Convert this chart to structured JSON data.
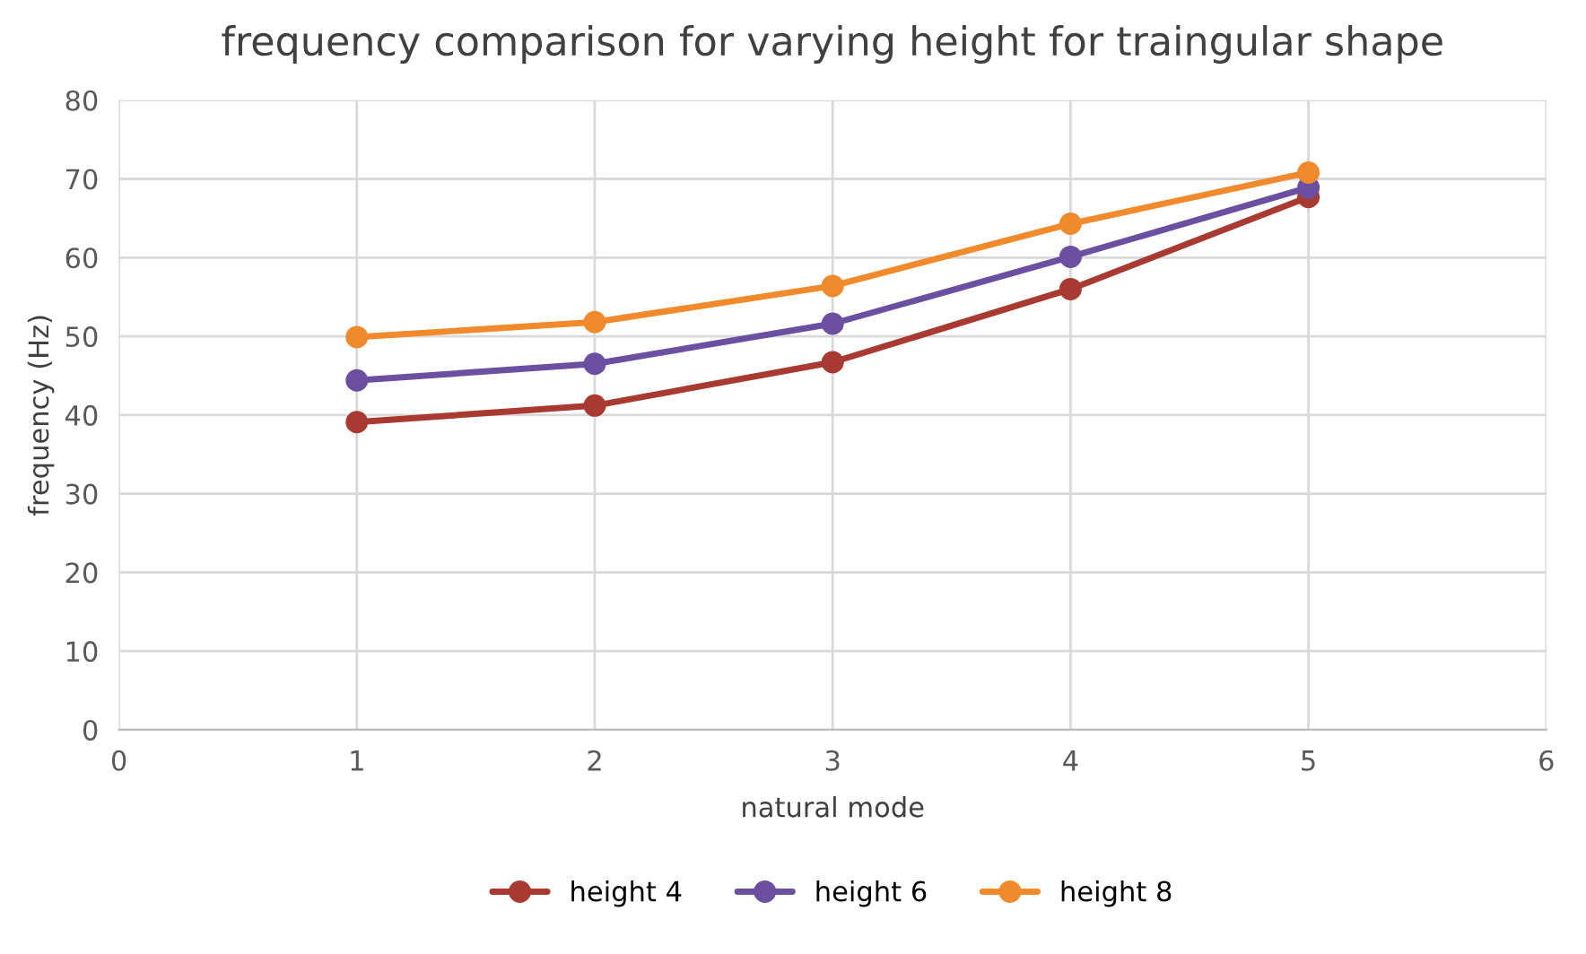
{
  "chart_data": {
    "type": "line",
    "title": "frequency comparison for varying height for traingular shape",
    "xlabel": "natural mode",
    "ylabel": "frequency (Hz)",
    "x": [
      1,
      2,
      3,
      4,
      5
    ],
    "series": [
      {
        "name": "height 4",
        "color": "#a83a32",
        "values": [
          39.1,
          41.2,
          46.7,
          56,
          67.7
        ]
      },
      {
        "name": "height 6",
        "color": "#6b4fa0",
        "values": [
          44.4,
          46.5,
          51.6,
          60.1,
          68.9
        ]
      },
      {
        "name": "height 8",
        "color": "#f08a2c",
        "values": [
          49.9,
          51.8,
          56.4,
          64.3,
          70.8
        ]
      }
    ],
    "xlim": [
      0,
      6
    ],
    "xticks": [
      0,
      1,
      2,
      3,
      4,
      5,
      6
    ],
    "ylim": [
      0,
      80
    ],
    "yticks": [
      0,
      10,
      20,
      30,
      40,
      50,
      60,
      70,
      80
    ],
    "grid": true,
    "legend": "bottom",
    "marker": "circle",
    "line_style": "solid"
  }
}
